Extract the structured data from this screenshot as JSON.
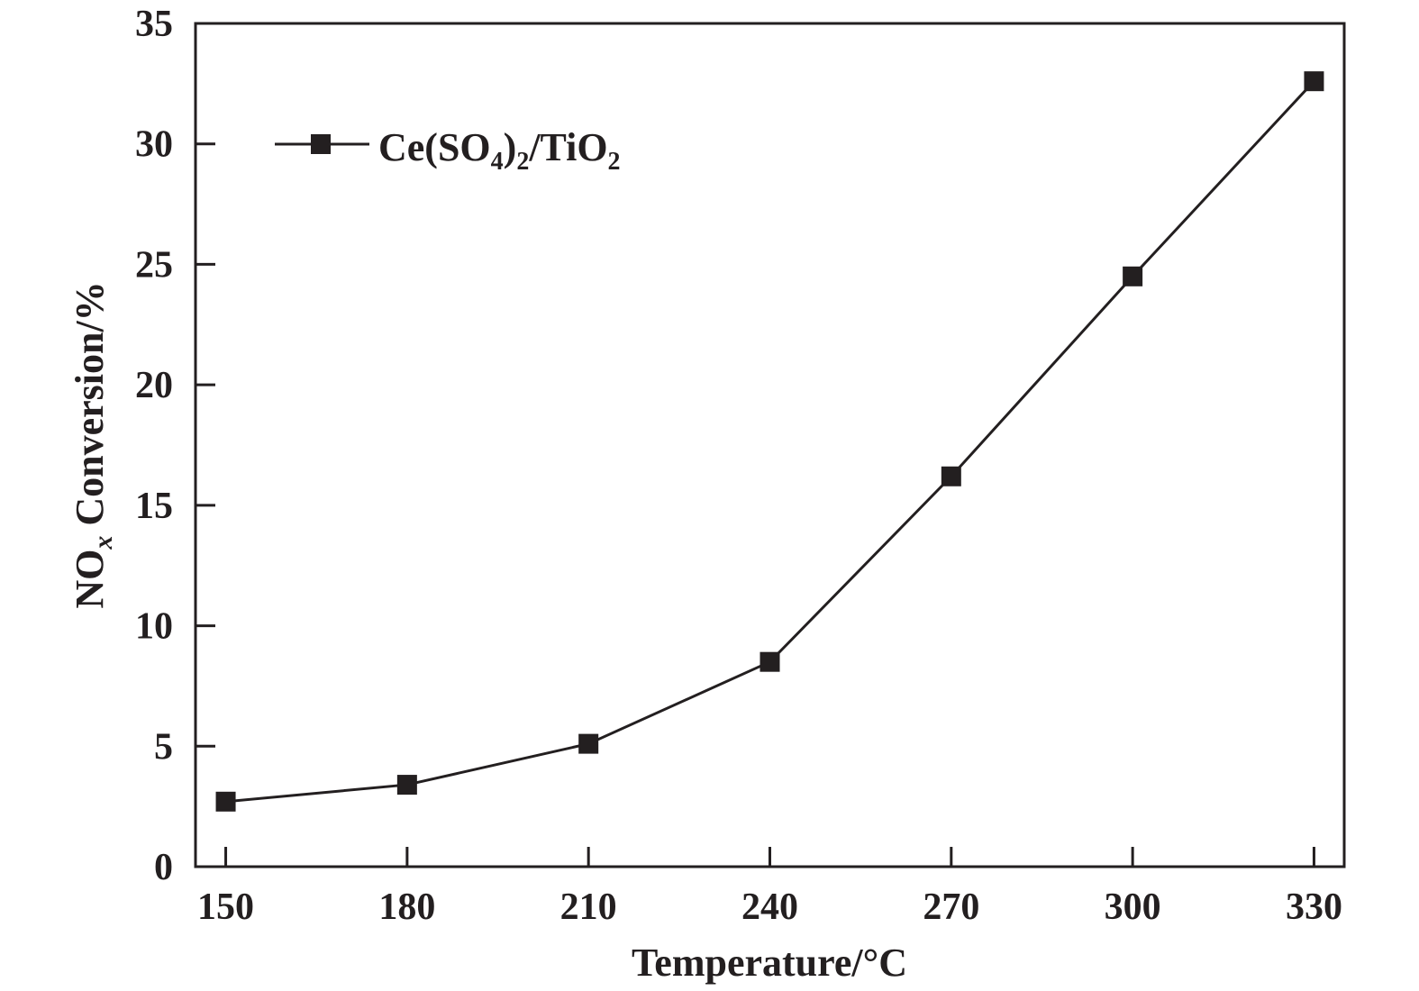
{
  "chart_data": {
    "type": "line",
    "title": "",
    "xlabel": "Temperature/°C",
    "ylabel": {
      "main": "NO",
      "sub": "x",
      "rest": " Conversion/%"
    },
    "x": [
      150,
      180,
      210,
      240,
      270,
      300,
      330
    ],
    "xlim": [
      145,
      335
    ],
    "ylim": [
      0,
      35
    ],
    "xticks": [
      150,
      180,
      210,
      240,
      270,
      300,
      330
    ],
    "yticks": [
      0,
      5,
      10,
      15,
      20,
      25,
      30,
      35
    ],
    "grid": false,
    "legend_position": "top-left",
    "series": [
      {
        "name": {
          "p1": "Ce(SO",
          "s1": "4",
          "p2": ")",
          "s2": "2",
          "p3": "/TiO",
          "s3": "2"
        },
        "marker": "square",
        "color": "#231f20",
        "values": [
          2.7,
          3.4,
          5.1,
          8.5,
          16.2,
          24.5,
          32.6
        ]
      }
    ]
  }
}
